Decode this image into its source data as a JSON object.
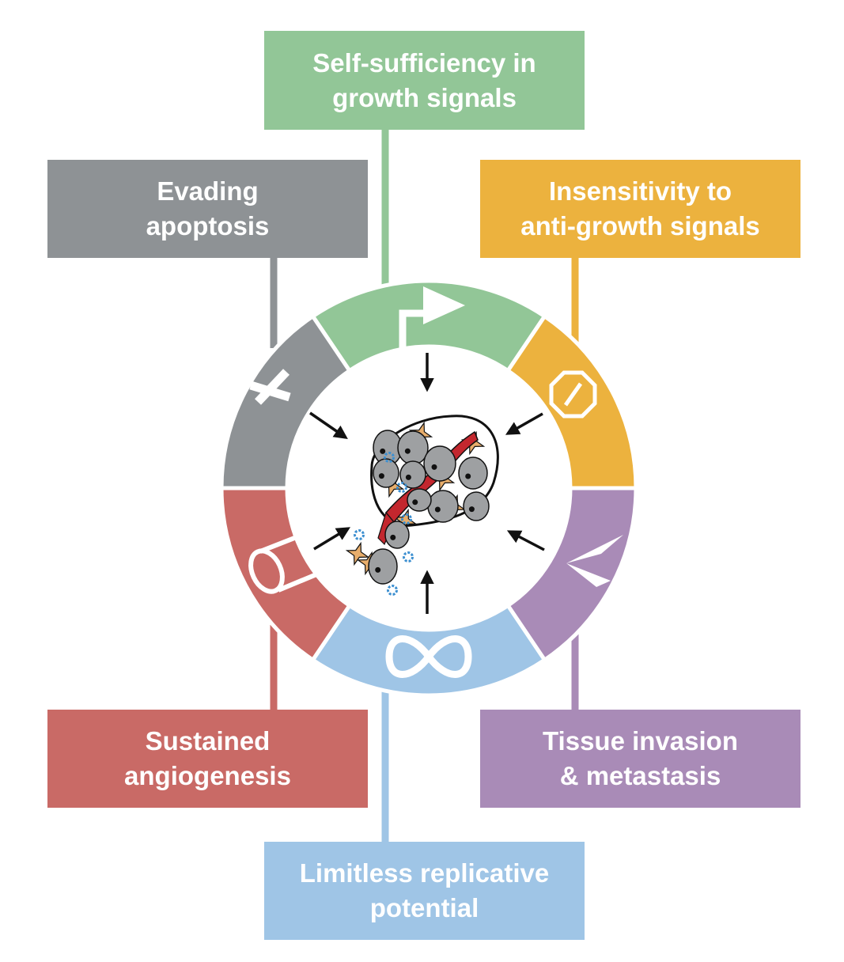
{
  "colors": {
    "growth": "#92c697",
    "apoptosis": "#8e9295",
    "antigrowth": "#ecb23e",
    "invasion": "#a98bb7",
    "replicative": "#9fc5e6",
    "angiogenesis": "#c96a66",
    "cell_gray": "#9ea0a2",
    "stroma": "#e8ae6c",
    "vessel": "#c3272e",
    "protein": "#3c8fd0"
  },
  "hallmarks": {
    "growth": {
      "line1": "Self-sufficiency in",
      "line2": "growth signals",
      "icon": "arrow-icon"
    },
    "apoptosis": {
      "line1": "Evading",
      "line2": "apoptosis",
      "icon": "cross-icon"
    },
    "antigrowth": {
      "line1": "Insensitivity to",
      "line2": "anti-growth signals",
      "icon": "no-entry-icon"
    },
    "angiogenesis": {
      "line1": "Sustained",
      "line2": "angiogenesis",
      "icon": "vessel-tube-icon"
    },
    "invasion": {
      "line1": "Tissue invasion",
      "line2": "& metastasis",
      "icon": "invasion-icon"
    },
    "replicative": {
      "line1": "Limitless replicative",
      "line2": "potential",
      "icon": "infinity-icon"
    }
  }
}
